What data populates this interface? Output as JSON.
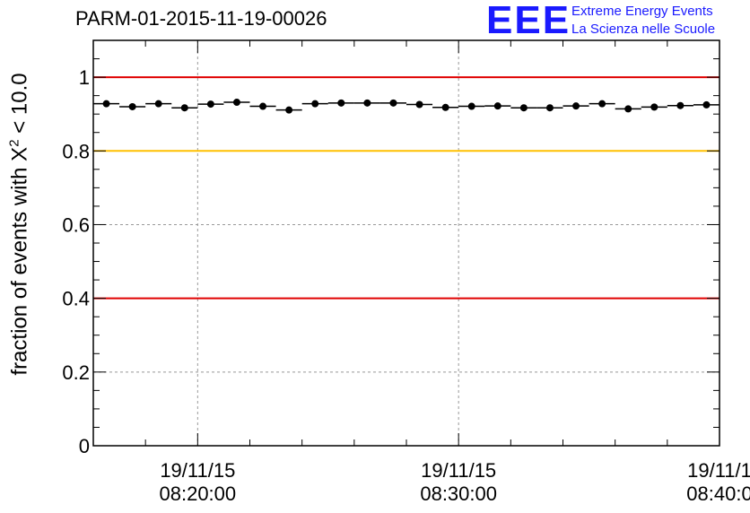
{
  "header": {
    "title": "PARM-01-2015-11-19-00026",
    "logo_text": "EEE",
    "org_line1": "Extreme Energy Events",
    "org_line2": "La Scienza nelle Scuole"
  },
  "colors": {
    "logo": "#1a1aff",
    "threshold_red": "#e00000",
    "threshold_yellow": "#ffc000",
    "points": "#000000",
    "grid": "#999999"
  },
  "chart_data": {
    "type": "scatter",
    "title": "PARM-01-2015-11-19-00026",
    "ylabel": {
      "prefix": "fraction of events with ",
      "symbol": "X",
      "superscript": "2",
      "suffix": " < 10.0"
    },
    "xlabel": "",
    "x_axis": {
      "type": "time",
      "start": "2015-11-19 08:16:00",
      "end": "2015-11-19 08:40:00",
      "tick_labels": [
        {
          "time": "2015-11-19 08:20:00",
          "line1": "19/11/15",
          "line2": "08:20:00"
        },
        {
          "time": "2015-11-19 08:30:00",
          "line1": "19/11/15",
          "line2": "08:30:00"
        },
        {
          "time": "2015-11-19 08:40:00",
          "line1": "19/11/1",
          "line2": "08:40:0"
        }
      ]
    },
    "ylim": [
      0,
      1.1
    ],
    "y_ticks": [
      0,
      0.2,
      0.4,
      0.6,
      0.8,
      1
    ],
    "y_tick_labels": [
      "0",
      "0.2",
      "0.4",
      "0.6",
      "0.8",
      "1"
    ],
    "grid": true,
    "thresholds": [
      {
        "y": 1.0,
        "color": "red"
      },
      {
        "y": 0.8,
        "color": "yellow"
      },
      {
        "y": 0.4,
        "color": "red"
      }
    ],
    "series": [
      {
        "bin_minutes": 1,
        "x": [
          "08:16:30",
          "08:17:30",
          "08:18:30",
          "08:19:30",
          "08:20:30",
          "08:21:30",
          "08:22:30",
          "08:23:30",
          "08:24:30",
          "08:25:30",
          "08:26:30",
          "08:27:30",
          "08:28:30",
          "08:29:30",
          "08:30:30",
          "08:31:30",
          "08:32:30",
          "08:33:30",
          "08:34:30",
          "08:35:30",
          "08:36:30",
          "08:37:30",
          "08:38:30",
          "08:39:30"
        ],
        "y": [
          0.928,
          0.92,
          0.928,
          0.917,
          0.927,
          0.932,
          0.921,
          0.911,
          0.928,
          0.93,
          0.93,
          0.93,
          0.926,
          0.918,
          0.921,
          0.922,
          0.917,
          0.917,
          0.922,
          0.928,
          0.914,
          0.919,
          0.923,
          0.925
        ]
      }
    ]
  }
}
